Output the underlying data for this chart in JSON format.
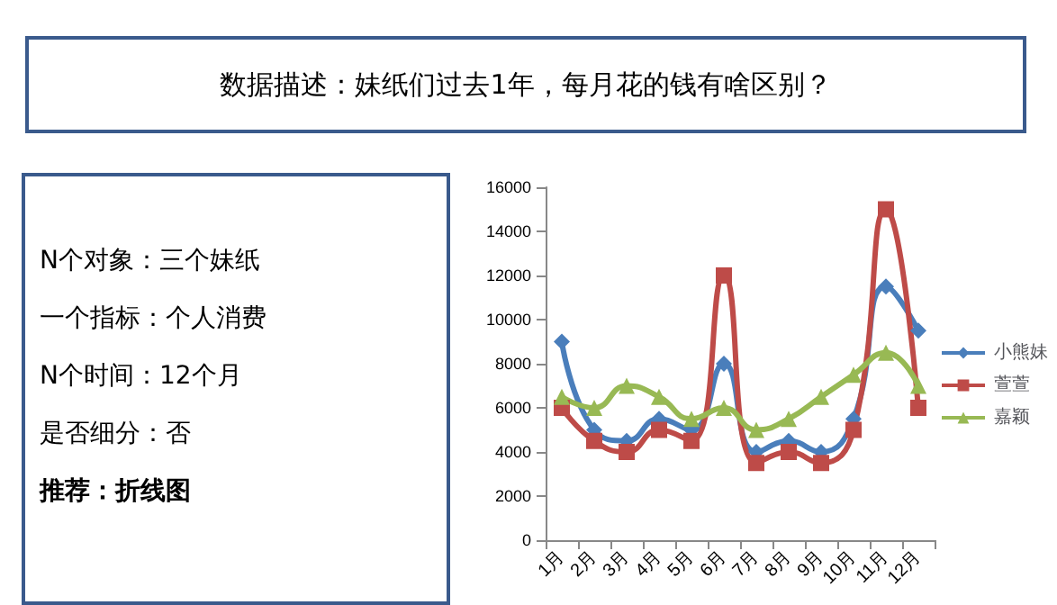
{
  "chart_data": [
    {
      "type": "other",
      "title": "数据描述：妹纸们过去1年，每月花的钱有啥区别？",
      "annotations": [
        "N个对象：三个妹纸",
        "一个指标：个人消费",
        "N个时间：12个月",
        "是否细分：否",
        "推荐：折线图"
      ]
    },
    {
      "type": "line",
      "categories": [
        "1月",
        "2月",
        "3月",
        "4月",
        "5月",
        "6月",
        "7月",
        "8月",
        "9月",
        "10月",
        "11月",
        "12月"
      ],
      "series": [
        {
          "name": "小熊妹",
          "color": "#4a7ebb",
          "marker": "diamond",
          "values": [
            9000,
            5000,
            4500,
            5500,
            5000,
            8000,
            4000,
            4500,
            4000,
            5500,
            11500,
            9500
          ]
        },
        {
          "name": "萱萱",
          "color": "#be4b48",
          "marker": "square",
          "values": [
            6000,
            4500,
            4000,
            5000,
            4500,
            12000,
            3500,
            4000,
            3500,
            5000,
            15000,
            6000
          ]
        },
        {
          "name": "嘉颖",
          "color": "#98b954",
          "marker": "triangle",
          "values": [
            6500,
            6000,
            7000,
            6500,
            5500,
            6000,
            5000,
            5500,
            6500,
            7500,
            8500,
            7000
          ]
        }
      ],
      "ylim": [
        0,
        16000
      ],
      "yticks": [
        0,
        2000,
        4000,
        6000,
        8000,
        10000,
        12000,
        14000,
        16000
      ],
      "grid": false,
      "legend": "right"
    }
  ]
}
